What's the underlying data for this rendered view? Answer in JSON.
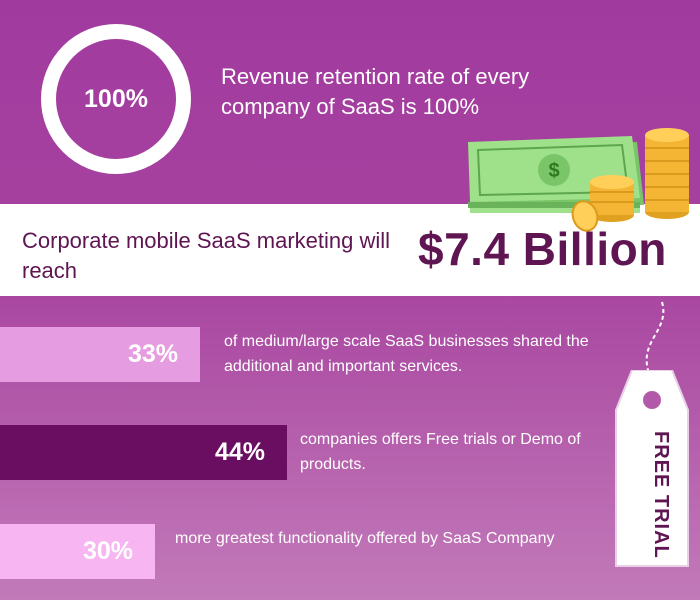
{
  "retention": {
    "percent": "100%",
    "text": "Revenue retention rate of every company of SaaS is 100%"
  },
  "market": {
    "text": "Corporate mobile SaaS marketing will reach",
    "value": "$7.4 Billion"
  },
  "stats": [
    {
      "value": "33%",
      "text": "of medium/large scale SaaS businesses shared the additional and important services."
    },
    {
      "value": "44%",
      "text": "companies offers Free trials or Demo of products."
    },
    {
      "value": "30%",
      "text": "more greatest functionality offered by SaaS Company"
    }
  ],
  "tag": {
    "label": "FREE TRIAL"
  },
  "colors": {
    "bg": "#a13a9f",
    "dark": "#5e1552",
    "bar_light": "#e69ce0",
    "bar_dark": "#6a0e61",
    "bar_pale": "#f7b6f2",
    "money": "#9fe08a",
    "coins": "#f4b534"
  },
  "icons": [
    "money-stack-icon",
    "coin-stacks-icon",
    "price-tag-icon"
  ]
}
